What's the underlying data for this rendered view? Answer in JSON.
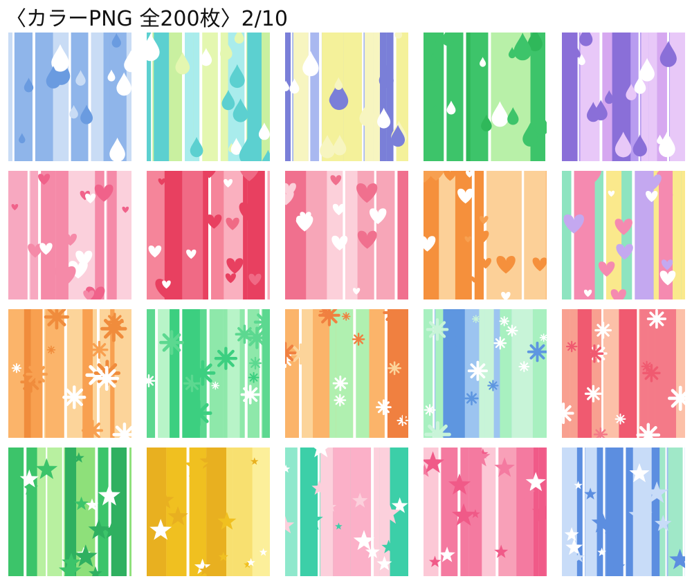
{
  "header": {
    "title": "〈カラーPNG 全200枚〉2/10"
  }
}
